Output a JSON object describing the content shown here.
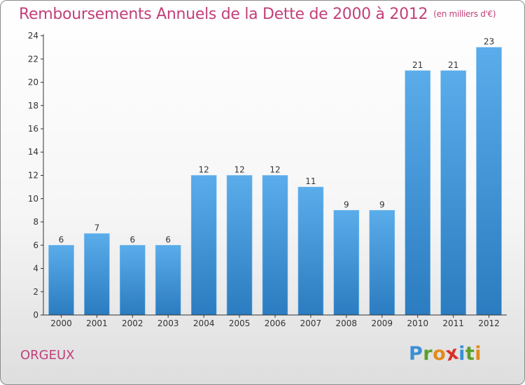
{
  "title": "Remboursements Annuels de la Dette de 2000 à 2012",
  "subtitle": "(en milliers d'€)",
  "place": "ORGEUX",
  "logo": {
    "text": "Proxiti",
    "letter_colors": [
      "#3a8fd6",
      "#5aa02c",
      "#e28a1c",
      "#d8302a",
      "#3a8fd6",
      "#5aa02c",
      "#e28a1c"
    ]
  },
  "colors": {
    "title": "#c2407a",
    "bar_light": "#5aacea",
    "bar_dark": "#2b7cc0",
    "axis": "#333333"
  },
  "chart_data": {
    "type": "bar",
    "categories": [
      "2000",
      "2001",
      "2002",
      "2003",
      "2004",
      "2005",
      "2006",
      "2007",
      "2008",
      "2009",
      "2010",
      "2011",
      "2012"
    ],
    "values": [
      6,
      7,
      6,
      6,
      12,
      12,
      12,
      11,
      9,
      9,
      21,
      21,
      23
    ],
    "data_labels": [
      "6",
      "7",
      "6",
      "6",
      "12",
      "12",
      "12",
      "11",
      "9",
      "9",
      "21",
      "21",
      "23"
    ],
    "title": "Remboursements Annuels de la Dette de 2000 à 2012",
    "xlabel": "",
    "ylabel": "",
    "ylim": [
      0,
      24
    ],
    "yticks": [
      0,
      2,
      4,
      6,
      8,
      10,
      12,
      14,
      16,
      18,
      20,
      22,
      24
    ],
    "grid": false,
    "legend": "none"
  }
}
